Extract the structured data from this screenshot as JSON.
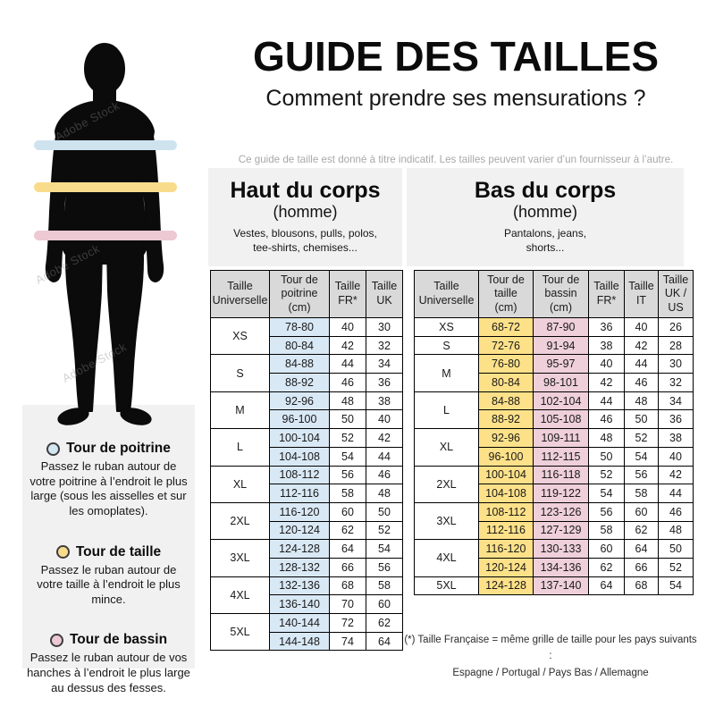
{
  "header": {
    "title": "GUIDE DES TAILLES",
    "subtitle": "Comment prendre ses mensurations ?",
    "disclaimer": "Ce guide de taille est donné à titre indicatif. Les tailles peuvent varier d’un fournisseur à l’autre."
  },
  "figure": {
    "watermark": "Adobe Stock",
    "silhouette_color": "#0b0b0b",
    "bands": [
      {
        "name": "tour-de-poitrine",
        "color": "#cfe3ef"
      },
      {
        "name": "tour-de-taille",
        "color": "#f8dc8c"
      },
      {
        "name": "tour-de-bassin",
        "color": "#ecc9d3"
      }
    ]
  },
  "legend": [
    {
      "title": "Tour de poitrine",
      "color": "#d4e6f2",
      "text": "Passez le ruban autour de votre poitrine à l’endroit le plus large (sous les aisselles et sur les omoplates)."
    },
    {
      "title": "Tour de taille",
      "color": "#f8dc8c",
      "text": "Passez le ruban autour de votre taille à l’endroit le plus mince."
    },
    {
      "title": "Tour de bassin",
      "color": "#ecc9d3",
      "text": "Passez le ruban autour de vos hanches à l’endroit le plus large au dessus des fesses."
    }
  ],
  "upper_table": {
    "title": "Haut du corps",
    "subtitle": "(homme)",
    "description": "Vestes, blousons, pulls, polos,\ntee-shirts, chemises...",
    "columns": [
      "Taille\nUniverselle",
      "Tour de\npoitrine\n(cm)",
      "Taille\nFR*",
      "Taille\nUK"
    ],
    "header_bg": "#d9d9d9",
    "highlight_cols": [
      {
        "index": 0,
        "color": "#d9e8f5"
      }
    ],
    "groups": [
      {
        "size": "XS",
        "rows": [
          [
            "78-80",
            "40",
            "30"
          ],
          [
            "80-84",
            "42",
            "32"
          ]
        ]
      },
      {
        "size": "S",
        "rows": [
          [
            "84-88",
            "44",
            "34"
          ],
          [
            "88-92",
            "46",
            "36"
          ]
        ]
      },
      {
        "size": "M",
        "rows": [
          [
            "92-96",
            "48",
            "38"
          ],
          [
            "96-100",
            "50",
            "40"
          ]
        ]
      },
      {
        "size": "L",
        "rows": [
          [
            "100-104",
            "52",
            "42"
          ],
          [
            "104-108",
            "54",
            "44"
          ]
        ]
      },
      {
        "size": "XL",
        "rows": [
          [
            "108-112",
            "56",
            "46"
          ],
          [
            "112-116",
            "58",
            "48"
          ]
        ]
      },
      {
        "size": "2XL",
        "rows": [
          [
            "116-120",
            "60",
            "50"
          ],
          [
            "120-124",
            "62",
            "52"
          ]
        ]
      },
      {
        "size": "3XL",
        "rows": [
          [
            "124-128",
            "64",
            "54"
          ],
          [
            "128-132",
            "66",
            "56"
          ]
        ]
      },
      {
        "size": "4XL",
        "rows": [
          [
            "132-136",
            "68",
            "58"
          ],
          [
            "136-140",
            "70",
            "60"
          ]
        ]
      },
      {
        "size": "5XL",
        "rows": [
          [
            "140-144",
            "72",
            "62"
          ],
          [
            "144-148",
            "74",
            "64"
          ]
        ]
      }
    ]
  },
  "lower_table": {
    "title": "Bas du corps",
    "subtitle": "(homme)",
    "description": "Pantalons, jeans,\nshorts...",
    "columns": [
      "Taille\nUniverselle",
      "Tour de\ntaille\n(cm)",
      "Tour de\nbassin\n(cm)",
      "Taille\nFR*",
      "Taille\nIT",
      "Taille\nUK /\nUS"
    ],
    "header_bg": "#d9d9d9",
    "highlight_cols": [
      {
        "index": 0,
        "color": "#fde189"
      },
      {
        "index": 1,
        "color": "#eecfda"
      }
    ],
    "groups": [
      {
        "size": "XS",
        "rows": [
          [
            "68-72",
            "87-90",
            "36",
            "40",
            "26"
          ]
        ]
      },
      {
        "size": "S",
        "rows": [
          [
            "72-76",
            "91-94",
            "38",
            "42",
            "28"
          ]
        ]
      },
      {
        "size": "M",
        "rows": [
          [
            "76-80",
            "95-97",
            "40",
            "44",
            "30"
          ],
          [
            "80-84",
            "98-101",
            "42",
            "46",
            "32"
          ]
        ]
      },
      {
        "size": "L",
        "rows": [
          [
            "84-88",
            "102-104",
            "44",
            "48",
            "34"
          ],
          [
            "88-92",
            "105-108",
            "46",
            "50",
            "36"
          ]
        ]
      },
      {
        "size": "XL",
        "rows": [
          [
            "92-96",
            "109-111",
            "48",
            "52",
            "38"
          ],
          [
            "96-100",
            "112-115",
            "50",
            "54",
            "40"
          ]
        ]
      },
      {
        "size": "2XL",
        "rows": [
          [
            "100-104",
            "116-118",
            "52",
            "56",
            "42"
          ],
          [
            "104-108",
            "119-122",
            "54",
            "58",
            "44"
          ]
        ]
      },
      {
        "size": "3XL",
        "rows": [
          [
            "108-112",
            "123-126",
            "56",
            "60",
            "46"
          ],
          [
            "112-116",
            "127-129",
            "58",
            "62",
            "48"
          ]
        ]
      },
      {
        "size": "4XL",
        "rows": [
          [
            "116-120",
            "130-133",
            "60",
            "64",
            "50"
          ],
          [
            "120-124",
            "134-136",
            "62",
            "66",
            "52"
          ]
        ]
      },
      {
        "size": "5XL",
        "rows": [
          [
            "124-128",
            "137-140",
            "64",
            "68",
            "54"
          ]
        ]
      }
    ],
    "footnote_line1": "(*) Taille Française = même grille de taille pour les pays suivants :",
    "footnote_line2": "Espagne / Portugal / Pays Bas / Allemagne"
  }
}
